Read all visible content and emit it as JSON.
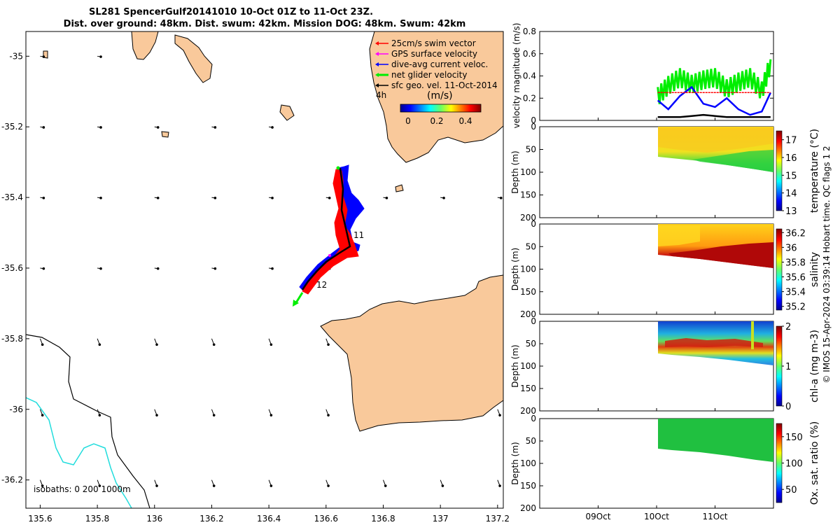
{
  "header": {
    "title_line1": "SL281 SpencerGulf20141010 10-Oct 01Z to 11-Oct 23Z.",
    "title_line2": "Dist. over ground: 48km. Dist. swum: 42km. Mission DOG: 48km. Swum: 42km"
  },
  "colors": {
    "land": "#f9c99b",
    "swim_vector": "#ff0000",
    "gps_velocity": "#ff00ff",
    "dive_avg_current": "#0000ff",
    "net_glider_velocity": "#00ee00",
    "sfc_geo": "#000000",
    "isobath_200": "#000000",
    "isobath_1000": "#22dddd"
  },
  "map": {
    "xticks": [
      "135.6",
      "135.8",
      "136",
      "136.2",
      "136.4",
      "136.6",
      "136.8",
      "137",
      "137.2"
    ],
    "yticks": [
      "-35",
      "-35.2",
      "-35.4",
      "-35.6",
      "-35.8",
      "-36",
      "-36.2"
    ],
    "legend": {
      "items": [
        {
          "label": "25cm/s swim vector",
          "color": "#ff0000"
        },
        {
          "label": "GPS surface velocity",
          "color": "#ff00ff"
        },
        {
          "label": "dive-avg current veloc.",
          "color": "#0000ff"
        },
        {
          "label": "net glider velocity",
          "color": "#00ee00"
        },
        {
          "label": "sfc geo. vel. 11-Oct-2014",
          "color": "#000000"
        }
      ],
      "time_label": "4h",
      "colorbar_unit": "(m/s)",
      "colorbar_ticks": [
        "0",
        "0.2",
        "0.4"
      ]
    },
    "day_labels": [
      "11",
      "12"
    ],
    "isobaths_label": "isobaths: 0   200  1000m"
  },
  "velocity_panel": {
    "ylabel": "velocity magnitude (m/s)",
    "yticks": [
      "0",
      "0.2",
      "0.4",
      "0.6",
      "0.8"
    ]
  },
  "section_panels": [
    {
      "name": "temperature",
      "ylabel": "Depth (m)",
      "cbar_label": "temperature (°C)",
      "cbar_ticks": [
        "13",
        "14",
        "15",
        "16",
        "17"
      ],
      "yticks": [
        "0",
        "50",
        "100",
        "150",
        "200"
      ]
    },
    {
      "name": "salinity",
      "ylabel": "Depth (m)",
      "cbar_label": "salinity",
      "cbar_ticks": [
        "35.2",
        "35.4",
        "35.6",
        "35.8",
        "36",
        "36.2"
      ],
      "yticks": [
        "0",
        "50",
        "100",
        "150",
        "200"
      ]
    },
    {
      "name": "chla",
      "ylabel": "Depth (m)",
      "cbar_label": "chl-a (mg m-3)",
      "cbar_ticks": [
        "0",
        "1",
        "2"
      ],
      "yticks": [
        "0",
        "50",
        "100",
        "150",
        "200"
      ]
    },
    {
      "name": "oxsat",
      "ylabel": "Depth (m)",
      "cbar_label": "Ox. sat. ratio (%)",
      "cbar_ticks": [
        "50",
        "100",
        "150"
      ],
      "yticks": [
        "0",
        "50",
        "100",
        "150",
        "200"
      ]
    }
  ],
  "time_axis": {
    "ticks": [
      "09Oct",
      "10Oct",
      "11Oct"
    ]
  },
  "side_note": "© IMOS 15-Apr-2024 03:39:14 Hobart time. QC flags 1  2",
  "chart_data": [
    {
      "type": "scatter",
      "title": "SL281 SpencerGulf20141010 10-Oct 01Z to 11-Oct 23Z.",
      "xlim": [
        135.55,
        137.22
      ],
      "ylim": [
        -36.28,
        -34.93
      ],
      "track": {
        "lon": [
          136.64,
          136.66,
          136.7,
          136.64,
          136.58,
          136.53,
          136.5
        ],
        "lat": [
          -35.32,
          -35.42,
          -35.54,
          -35.58,
          -35.63,
          -35.67,
          -35.71
        ]
      },
      "day_marks": [
        {
          "label": "11",
          "lon": 136.7,
          "lat": -35.54
        },
        {
          "label": "12",
          "lon": 136.53,
          "lat": -35.66
        }
      ]
    },
    {
      "type": "line",
      "ylabel": "velocity magnitude (m/s)",
      "ylim": [
        0,
        0.8
      ],
      "x_days": [
        10.02,
        10.2,
        10.4,
        10.6,
        10.8,
        11.0,
        11.2,
        11.4,
        11.6,
        11.8,
        11.95
      ],
      "series": [
        {
          "name": "net glider velocity",
          "values": [
            0.25,
            0.35,
            0.42,
            0.36,
            0.4,
            0.42,
            0.32,
            0.38,
            0.42,
            0.3,
            0.55
          ]
        },
        {
          "name": "dive-avg current veloc.",
          "values": [
            0.18,
            0.1,
            0.22,
            0.3,
            0.15,
            0.12,
            0.2,
            0.1,
            0.05,
            0.08,
            0.25
          ]
        },
        {
          "name": "25cm/s swim vector",
          "values": [
            0.25,
            0.25,
            0.25,
            0.25,
            0.25,
            0.25,
            0.25,
            0.25,
            0.25,
            0.25,
            0.25
          ]
        },
        {
          "name": "sfc geo. vel. 11-Oct-2014",
          "values": [
            0.03,
            0.03,
            0.03,
            0.04,
            0.05,
            0.04,
            0.03,
            0.03,
            0.03,
            0.03,
            0.03
          ]
        }
      ]
    }
  ]
}
